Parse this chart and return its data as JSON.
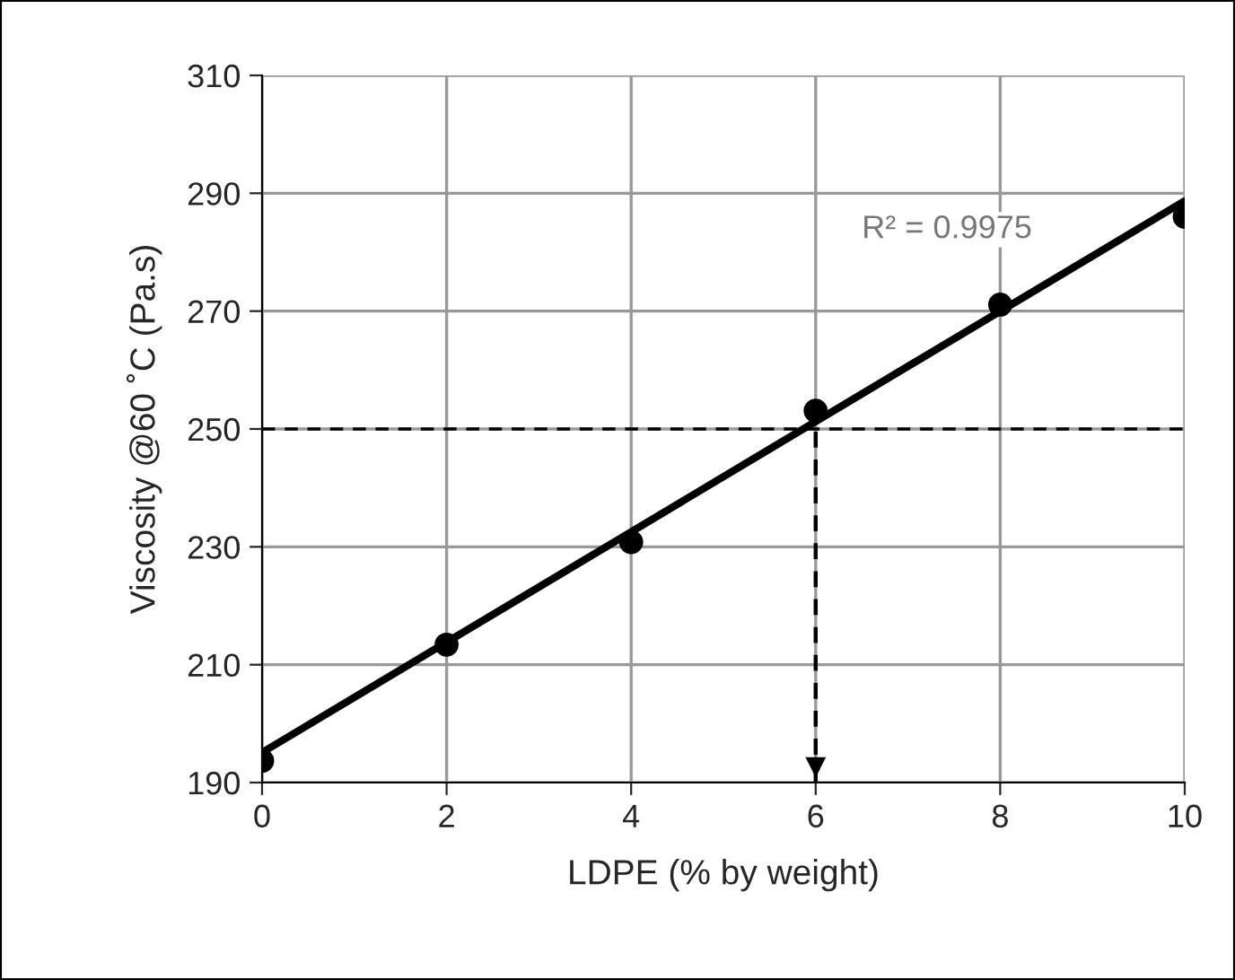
{
  "chart_data": {
    "type": "scatter",
    "xlabel": "LDPE (% by weight)",
    "ylabel": "Viscosity @60 ˚C (Pa.s)",
    "xlim": [
      0,
      10
    ],
    "ylim": [
      190,
      310
    ],
    "xticks": [
      0,
      2,
      4,
      6,
      8,
      10
    ],
    "yticks": [
      190,
      210,
      230,
      250,
      270,
      290,
      310
    ],
    "grid": true,
    "marker": "circle",
    "series": [
      {
        "color": "#000000",
        "x": [
          0,
          2,
          4,
          6,
          8,
          10
        ],
        "values": [
          193.7,
          213.4,
          230.8,
          253.1,
          271.1,
          286.0
        ]
      },
      {
        "type": "line",
        "color": "#000000",
        "x": [
          0,
          10
        ],
        "values": [
          195.1,
          288.7
        ],
        "line_style": "solid",
        "marker": "none"
      }
    ],
    "ref_lines": [
      {
        "axis": "y",
        "value": 250,
        "color": "#000000",
        "line_style": "dashed"
      },
      {
        "axis": "x",
        "value": 6,
        "color": "#000000",
        "line_style": "dashed"
      }
    ],
    "annotations": [
      "R² = 0.9975"
    ]
  }
}
